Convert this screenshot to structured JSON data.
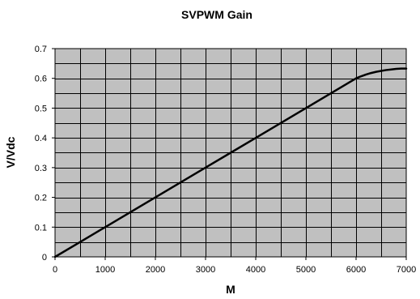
{
  "chart_data": {
    "type": "line",
    "title": "SVPWM Gain",
    "xlabel": "M",
    "ylabel": "V/Vdc",
    "xlim": [
      0,
      7000
    ],
    "ylim": [
      0,
      0.7
    ],
    "x_ticks": [
      0,
      1000,
      2000,
      3000,
      4000,
      5000,
      6000,
      7000
    ],
    "x_tick_labels": [
      "0",
      "1000",
      "2000",
      "3000",
      "4000",
      "5000",
      "6000",
      "7000"
    ],
    "x_minor_step": 500,
    "y_ticks": [
      0,
      0.1,
      0.2,
      0.3,
      0.4,
      0.5,
      0.6,
      0.7
    ],
    "y_tick_labels": [
      "0",
      "0.1",
      "0.2",
      "0.3",
      "0.4",
      "0.5",
      "0.6",
      "0.7"
    ],
    "y_minor_step": 0.05,
    "grid": true,
    "legend": "none",
    "series": [
      {
        "x": [
          0,
          500,
          1000,
          1500,
          2000,
          2500,
          3000,
          3500,
          4000,
          4500,
          5000,
          5500,
          6000,
          6100,
          6200,
          6300,
          6400,
          6500,
          6600,
          6700,
          6800,
          6900,
          7000
        ],
        "y": [
          0,
          0.05,
          0.1,
          0.15,
          0.2,
          0.25,
          0.3,
          0.35,
          0.4,
          0.45,
          0.5,
          0.55,
          0.6,
          0.607,
          0.613,
          0.618,
          0.622,
          0.625,
          0.628,
          0.63,
          0.632,
          0.633,
          0.633
        ]
      }
    ],
    "colors": {
      "plot_background": "#c0c0c0",
      "grid": "#000000",
      "line": "#000000"
    }
  }
}
